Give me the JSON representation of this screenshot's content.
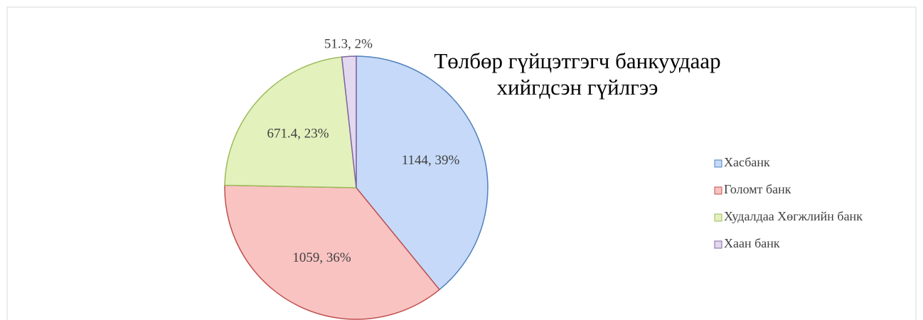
{
  "chart_data": {
    "type": "pie",
    "title": [
      "Төлбөр гүйцэтгэгч банкуудаар",
      "хийгдсэн гүйлгээ"
    ],
    "categories": [
      "Хасбанк",
      "Голомт банк",
      "Худалдаа Хөгжлийн банк",
      "Хаан банк"
    ],
    "values": [
      1144,
      1059,
      671.4,
      51.3
    ],
    "value_labels": [
      "1144, 39%",
      "1059, 36%",
      "671.4, 23%",
      "51.3, 2%"
    ],
    "colors": [
      "#c6d9f8",
      "#f9c3c2",
      "#e3f1bd",
      "#e2d8ef"
    ],
    "edge_colors": [
      "#4f81bd",
      "#c0504d",
      "#9bbb59",
      "#8064a2"
    ],
    "legend": "right"
  }
}
